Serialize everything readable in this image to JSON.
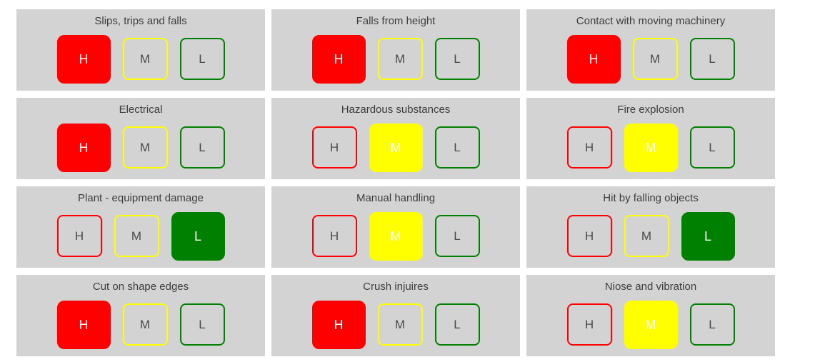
{
  "colors": {
    "high": "#ff0000",
    "medium": "#ffff00",
    "low": "#008000",
    "panel-bg": "#d3d3d3",
    "page-bg": "#ffffff",
    "title-text": "#3d3d3d",
    "button-text": "#4a4a4a",
    "selected-text": "#ffffff"
  },
  "levels": {
    "high": "H",
    "medium": "M",
    "low": "L"
  },
  "panels": [
    {
      "title": "Slips, trips and falls",
      "selected": "H"
    },
    {
      "title": "Falls from height",
      "selected": "H"
    },
    {
      "title": "Contact with moving machinery",
      "selected": "H"
    },
    {
      "title": "Electrical",
      "selected": "H"
    },
    {
      "title": "Hazardous substances",
      "selected": "M"
    },
    {
      "title": "Fire explosion",
      "selected": "M"
    },
    {
      "title": "Plant - equipment damage",
      "selected": "L"
    },
    {
      "title": "Manual handling",
      "selected": "M"
    },
    {
      "title": "Hit by falling objects",
      "selected": "L"
    },
    {
      "title": "Cut on shape edges",
      "selected": "H"
    },
    {
      "title": "Crush injuires",
      "selected": "H"
    },
    {
      "title": "Niose and vibration",
      "selected": "M"
    }
  ]
}
